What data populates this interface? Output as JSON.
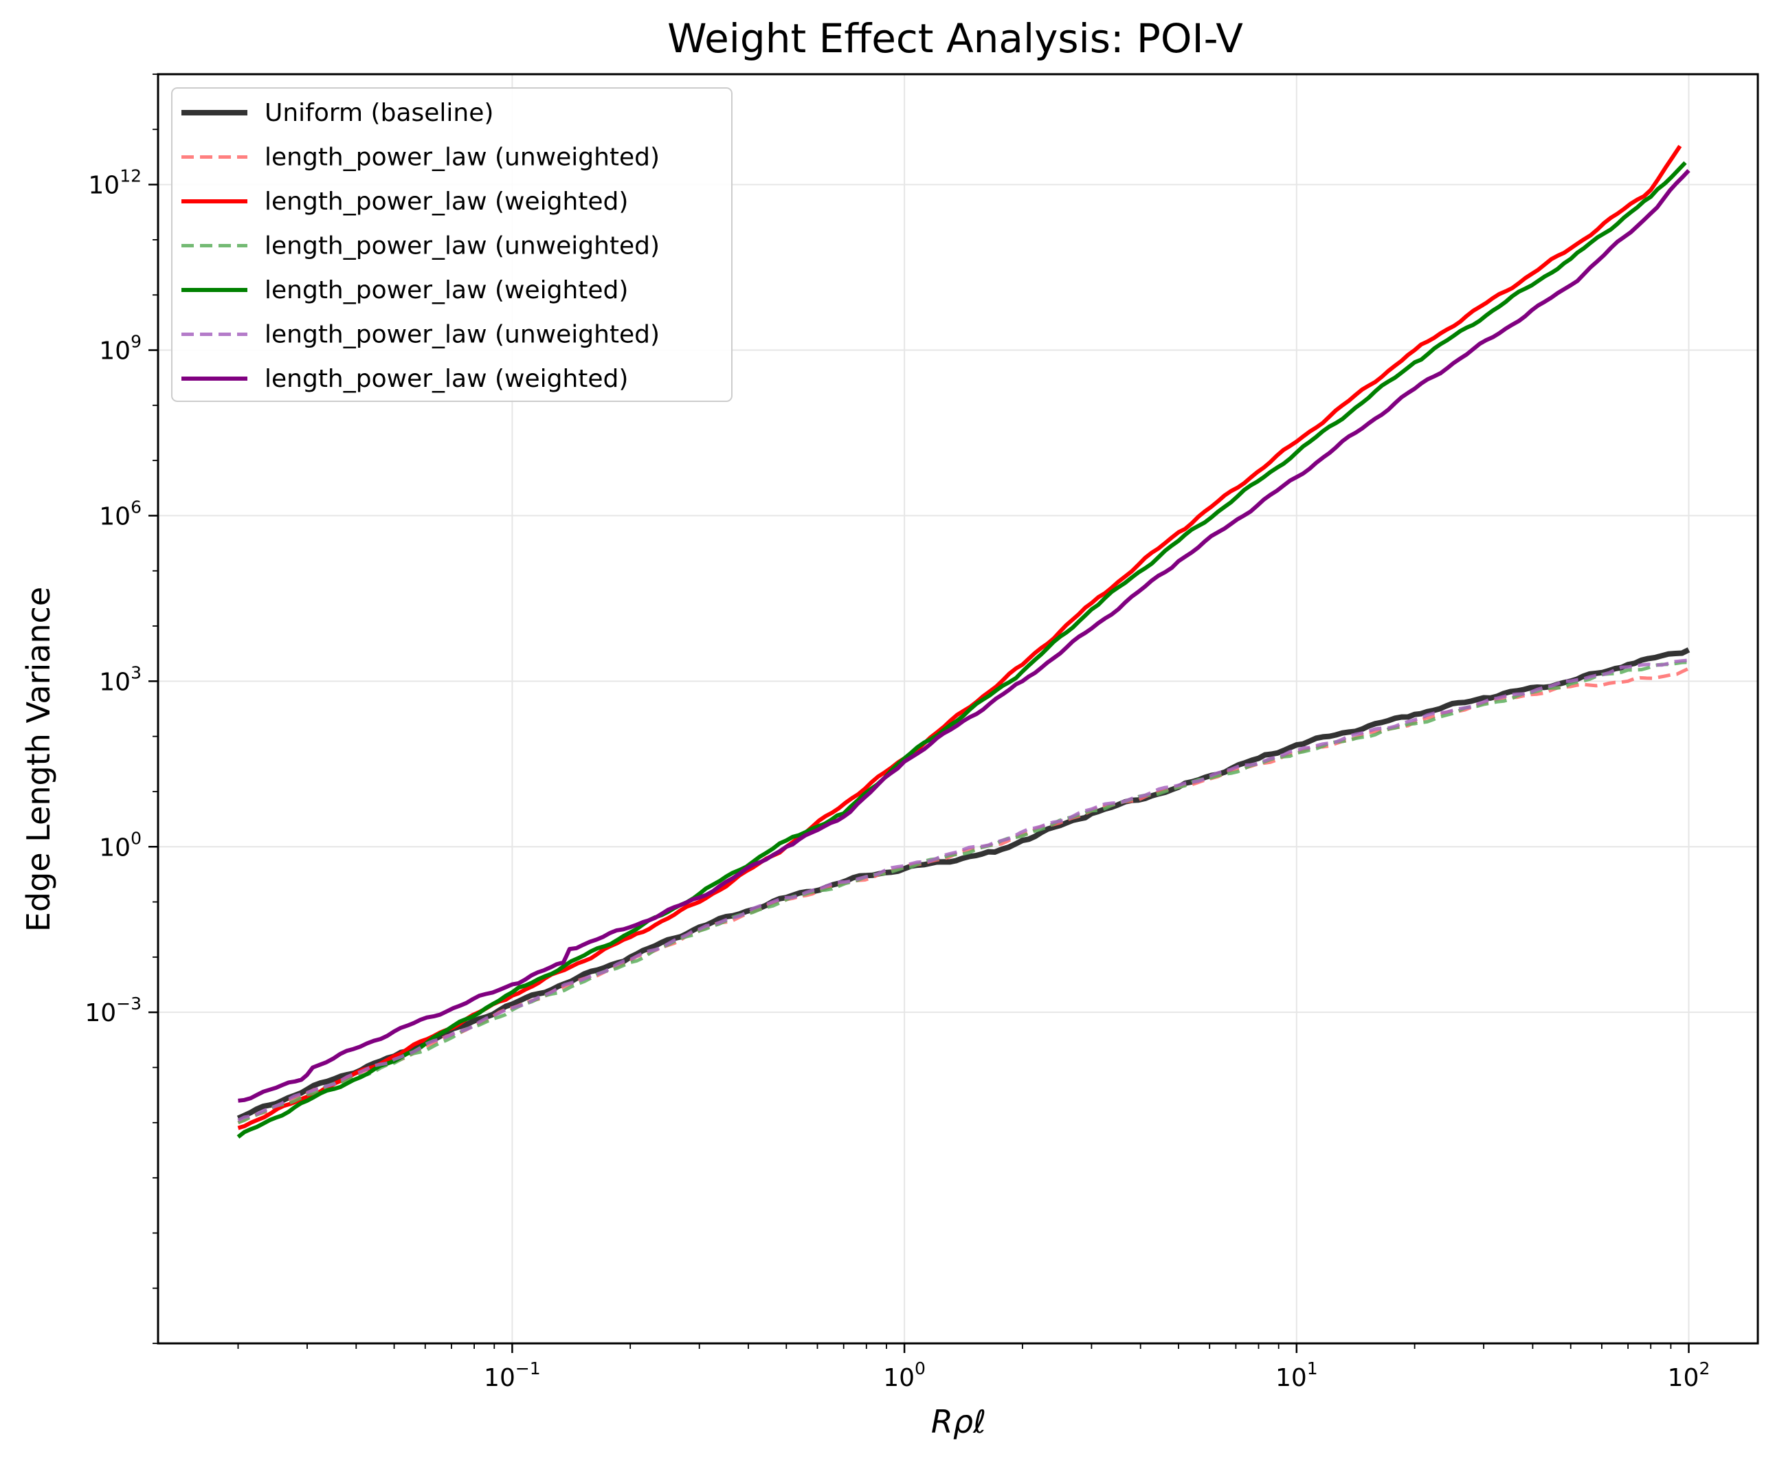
{
  "chart_data": {
    "type": "line",
    "title": "Weight Effect Analysis: POI-V",
    "xlabel": "Rρℓ",
    "ylabel": "Edge Length Variance",
    "xscale": "log",
    "yscale": "log",
    "xlim": [
      0.0125,
      150
    ],
    "ylim": [
      1e-09,
      100000000000000.0
    ],
    "xticks": [
      {
        "value": 0.1,
        "base": "10",
        "exp": "−1"
      },
      {
        "value": 1,
        "base": "10",
        "exp": "0"
      },
      {
        "value": 10,
        "base": "10",
        "exp": "1"
      },
      {
        "value": 100,
        "base": "10",
        "exp": "2"
      }
    ],
    "yticks": [
      {
        "value": 0.001,
        "base": "10",
        "exp": "−3"
      },
      {
        "value": 1,
        "base": "10",
        "exp": "0"
      },
      {
        "value": 1000,
        "base": "10",
        "exp": "3"
      },
      {
        "value": 1000000,
        "base": "10",
        "exp": "6"
      },
      {
        "value": 1000000000,
        "base": "10",
        "exp": "9"
      },
      {
        "value": 1000000000000,
        "base": "10",
        "exp": "12"
      }
    ],
    "grid": true,
    "legend_position": "upper-left",
    "series": [
      {
        "name": "Uniform (baseline)",
        "color": "#333333",
        "style": "solid",
        "width": 8,
        "points": [
          [
            0.02,
            1.2e-05
          ],
          [
            0.03,
            4e-05
          ],
          [
            0.05,
            0.00016
          ],
          [
            0.1,
            0.0014
          ],
          [
            0.2,
            0.01
          ],
          [
            0.3,
            0.035
          ],
          [
            0.5,
            0.12
          ],
          [
            0.8,
            0.3
          ],
          [
            1.0,
            0.4
          ],
          [
            1.7,
            0.8
          ],
          [
            2.0,
            1.3
          ],
          [
            3.0,
            4.0
          ],
          [
            5.0,
            12
          ],
          [
            8.0,
            40
          ],
          [
            10.0,
            70
          ],
          [
            20.0,
            250
          ],
          [
            30.0,
            500
          ],
          [
            50.0,
            1000
          ],
          [
            70.0,
            2000
          ],
          [
            100.0,
            3700
          ]
        ]
      },
      {
        "name": "length_power_law (unweighted)",
        "color": "#ff6a6a",
        "style": "dashed",
        "width": 5,
        "points": [
          [
            0.02,
            1e-05
          ],
          [
            0.03,
            3.4e-05
          ],
          [
            0.05,
            0.00013
          ],
          [
            0.1,
            0.0012
          ],
          [
            0.2,
            0.0085
          ],
          [
            0.3,
            0.03
          ],
          [
            0.5,
            0.11
          ],
          [
            1.0,
            0.42
          ],
          [
            1.7,
            1.1
          ],
          [
            3.0,
            4.5
          ],
          [
            5.0,
            12
          ],
          [
            10.0,
            50
          ],
          [
            20.0,
            180
          ],
          [
            30.0,
            400
          ],
          [
            50.0,
            800
          ],
          [
            70.0,
            1000
          ],
          [
            90.0,
            1300
          ],
          [
            100.0,
            1700
          ]
        ]
      },
      {
        "name": "length_power_law (weighted)",
        "color": "#ff0000",
        "style": "solid",
        "width": 6,
        "points": [
          [
            0.02,
            8e-06
          ],
          [
            0.033,
            4e-05
          ],
          [
            0.05,
            0.00016
          ],
          [
            0.1,
            0.002
          ],
          [
            0.2,
            0.023
          ],
          [
            0.3,
            0.1
          ],
          [
            0.5,
            1.0
          ],
          [
            1.0,
            40
          ],
          [
            2.0,
            2000
          ],
          [
            3.0,
            26000.0
          ],
          [
            5.0,
            500000.0
          ],
          [
            10.0,
            22000000.0
          ],
          [
            20.0,
            1000000000.0
          ],
          [
            50.0,
            70000000000.0
          ],
          [
            80.0,
            800000000000.0
          ],
          [
            95.0,
            5000000000000.0
          ]
        ]
      },
      {
        "name": "length_power_law (unweighted)",
        "color": "#5cae5c",
        "style": "dashed",
        "width": 5,
        "points": [
          [
            0.02,
            1e-05
          ],
          [
            0.03,
            3.2e-05
          ],
          [
            0.05,
            0.00012
          ],
          [
            0.1,
            0.0011
          ],
          [
            0.2,
            0.008
          ],
          [
            0.3,
            0.03
          ],
          [
            0.5,
            0.11
          ],
          [
            1.0,
            0.42
          ],
          [
            1.7,
            1.1
          ],
          [
            3.0,
            4.5
          ],
          [
            5.0,
            12
          ],
          [
            10.0,
            50
          ],
          [
            20.0,
            170
          ],
          [
            30.0,
            380
          ],
          [
            50.0,
            900
          ],
          [
            70.0,
            1600
          ],
          [
            100.0,
            2200
          ]
        ]
      },
      {
        "name": "length_power_law (weighted)",
        "color": "#008000",
        "style": "solid",
        "width": 6,
        "points": [
          [
            0.02,
            5.5e-06
          ],
          [
            0.03,
            2.5e-05
          ],
          [
            0.05,
            0.00013
          ],
          [
            0.1,
            0.0023
          ],
          [
            0.2,
            0.028
          ],
          [
            0.3,
            0.14
          ],
          [
            0.5,
            1.3
          ],
          [
            0.7,
            4.0
          ],
          [
            1.0,
            40
          ],
          [
            2.0,
            1500
          ],
          [
            3.0,
            20000.0
          ],
          [
            5.0,
            350000.0
          ],
          [
            10.0,
            14000000.0
          ],
          [
            20.0,
            600000000.0
          ],
          [
            50.0,
            45000000000.0
          ],
          [
            80.0,
            600000000000.0
          ],
          [
            98.0,
            2500000000000.0
          ]
        ]
      },
      {
        "name": "length_power_law (unweighted)",
        "color": "#a865c0",
        "style": "dashed",
        "width": 5,
        "points": [
          [
            0.02,
            1.1e-05
          ],
          [
            0.03,
            3.5e-05
          ],
          [
            0.05,
            0.00014
          ],
          [
            0.1,
            0.0012
          ],
          [
            0.2,
            0.009
          ],
          [
            0.3,
            0.032
          ],
          [
            0.5,
            0.12
          ],
          [
            1.0,
            0.45
          ],
          [
            1.7,
            1.2
          ],
          [
            3.0,
            4.8
          ],
          [
            5.0,
            13
          ],
          [
            10.0,
            55
          ],
          [
            20.0,
            200
          ],
          [
            30.0,
            420
          ],
          [
            50.0,
            1000
          ],
          [
            70.0,
            1800
          ],
          [
            100.0,
            2400
          ]
        ]
      },
      {
        "name": "length_power_law (weighted)",
        "color": "#800080",
        "style": "solid",
        "width": 6,
        "points": [
          [
            0.02,
            2.5e-05
          ],
          [
            0.029,
            6e-05
          ],
          [
            0.031,
            0.0001
          ],
          [
            0.05,
            0.00045
          ],
          [
            0.1,
            0.0032
          ],
          [
            0.135,
            0.008
          ],
          [
            0.14,
            0.014
          ],
          [
            0.2,
            0.035
          ],
          [
            0.3,
            0.12
          ],
          [
            0.5,
            1.0
          ],
          [
            0.7,
            3.5
          ],
          [
            1.0,
            35
          ],
          [
            2.0,
            1000
          ],
          [
            3.0,
            9000.0
          ],
          [
            5.0,
            150000.0
          ],
          [
            10.0,
            5000000.0
          ],
          [
            20.0,
            200000000.0
          ],
          [
            50.0,
            15000000000.0
          ],
          [
            80.0,
            300000000000.0
          ],
          [
            100.0,
            1800000000000.0
          ]
        ]
      }
    ]
  }
}
